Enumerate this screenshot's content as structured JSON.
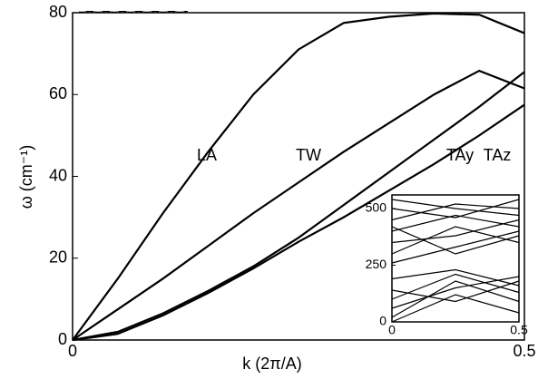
{
  "chart_data": [
    {
      "type": "line",
      "xlabel": "k (2π/A)",
      "ylabel": "ω (cm⁻¹)",
      "x": [
        0,
        0.05,
        0.1,
        0.15,
        0.2,
        0.25,
        0.3,
        0.35,
        0.4,
        0.45,
        0.5
      ],
      "xlim": [
        0,
        0.5
      ],
      "xticks": [
        0,
        0.5
      ],
      "ylim": [
        0,
        80
      ],
      "yticks": [
        0,
        20,
        40,
        60,
        80
      ],
      "series": [
        {
          "name": "LA",
          "color": "#000000",
          "values": [
            0,
            15,
            31,
            46,
            60,
            71,
            77.5,
            79,
            79.8,
            79.5,
            75
          ]
        },
        {
          "name": "TW",
          "color": "#000000",
          "values": [
            0,
            7.5,
            15,
            23,
            31,
            38.5,
            46,
            53,
            60,
            65.8,
            61.5
          ]
        },
        {
          "name": "TAy",
          "color": "#000000",
          "values": [
            0,
            2,
            6.5,
            12,
            18,
            25,
            33,
            41,
            49,
            57,
            65.5
          ]
        },
        {
          "name": "TAz",
          "color": "#000000",
          "values": [
            0,
            1.5,
            6,
            11.5,
            17.5,
            24,
            30,
            36.5,
            43,
            50,
            57.5
          ]
        }
      ]
    },
    {
      "type": "line",
      "x": [
        0,
        0.25,
        0.5
      ],
      "xlim": [
        0,
        0.5
      ],
      "xticks": [
        0,
        0.5
      ],
      "ylim": [
        0,
        560
      ],
      "yticks": [
        0,
        250,
        500
      ],
      "series": [
        {
          "color": "#000000",
          "values": [
            0,
            120,
            40
          ]
        },
        {
          "color": "#000000",
          "values": [
            20,
            180,
            90
          ]
        },
        {
          "color": "#000000",
          "values": [
            60,
            150,
            200
          ]
        },
        {
          "color": "#000000",
          "values": [
            100,
            210,
            130
          ]
        },
        {
          "color": "#000000",
          "values": [
            140,
            90,
            180
          ]
        },
        {
          "color": "#000000",
          "values": [
            190,
            230,
            160
          ]
        },
        {
          "color": "#000000",
          "values": [
            260,
            330,
            400
          ]
        },
        {
          "color": "#000000",
          "values": [
            300,
            420,
            350
          ]
        },
        {
          "color": "#000000",
          "values": [
            350,
            380,
            450
          ]
        },
        {
          "color": "#000000",
          "values": [
            400,
            470,
            420
          ]
        },
        {
          "color": "#000000",
          "values": [
            450,
            520,
            500
          ]
        },
        {
          "color": "#000000",
          "values": [
            500,
            460,
            540
          ]
        },
        {
          "color": "#000000",
          "values": [
            540,
            500,
            470
          ]
        },
        {
          "color": "#000000",
          "values": [
            420,
            300,
            380
          ]
        }
      ]
    }
  ]
}
